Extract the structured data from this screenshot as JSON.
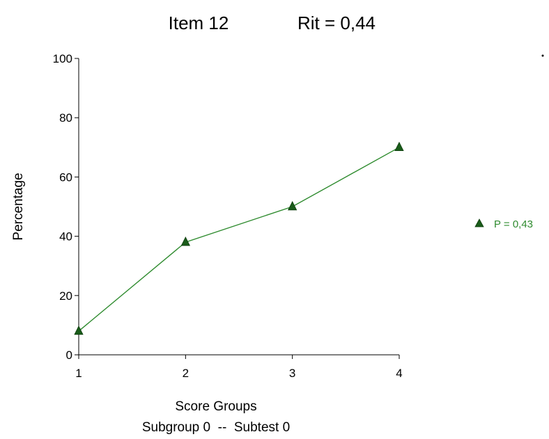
{
  "chart_data": {
    "type": "line",
    "title_item": "Item 12",
    "title_rit": "Rit = 0,44",
    "xlabel": "Score Groups",
    "xlabel_sub": "Subgroup 0  --  Subtest 0",
    "ylabel": "Percentage",
    "x_ticks": [
      "1",
      "2",
      "3",
      "4"
    ],
    "y_ticks": [
      "0",
      "20",
      "40",
      "60",
      "80",
      "100"
    ],
    "xlim": [
      1,
      4
    ],
    "ylim": [
      0,
      100
    ],
    "grid": false,
    "legend_position": "right",
    "series": [
      {
        "name": "P = 0,43",
        "x": [
          1,
          2,
          3,
          4
        ],
        "y": [
          8,
          38,
          50,
          70
        ],
        "color": "#2e8b2e",
        "marker": "triangle",
        "marker_color": "#1a5c1a"
      }
    ]
  }
}
